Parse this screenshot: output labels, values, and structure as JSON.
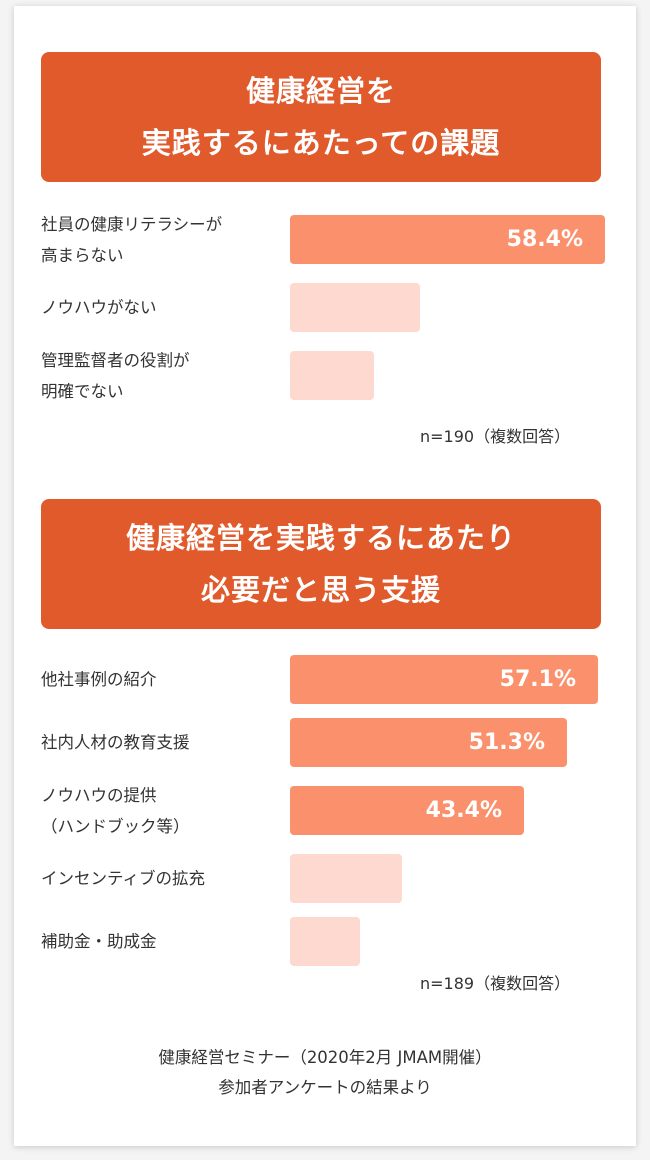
{
  "section1": {
    "title_lines": [
      "健康経営を",
      "実践するにあたっての課題"
    ],
    "note": "n=190（複数回答）"
  },
  "section2": {
    "title_lines": [
      "健康経営を実践するにあたり",
      "必要だと思う支援"
    ],
    "note": "n=189（複数回答）"
  },
  "footer": {
    "lines": [
      "健康経営セミナー（2020年2月 JMAM開催）",
      "参加者アンケートの結果より"
    ]
  },
  "colors": {
    "banner": "#e05a2c",
    "bar_highlight": "#fb916c",
    "bar_light": "#fdd9cf"
  },
  "chart_data": [
    {
      "type": "bar",
      "orientation": "horizontal",
      "categories": [
        [
          "社員の健康リテラシーが",
          "高まらない"
        ],
        [
          "ノウハウがない"
        ],
        [
          "管理監督者の役割が",
          "明確でない"
        ]
      ],
      "values": [
        58.4,
        24.0,
        15.5
      ],
      "value_labels": [
        "58.4%",
        "",
        ""
      ],
      "highlighted": [
        true,
        false,
        false
      ]
    },
    {
      "type": "bar",
      "orientation": "horizontal",
      "categories": [
        [
          "他社事例の紹介"
        ],
        [
          "社内人材の教育支援"
        ],
        [
          "ノウハウの提供",
          "（ハンドブック等）"
        ],
        [
          "インセンティブの拡充"
        ],
        [
          "補助金・助成金"
        ]
      ],
      "values": [
        57.1,
        51.3,
        43.4,
        20.7,
        13.0
      ],
      "value_labels": [
        "57.1%",
        "51.3%",
        "43.4%",
        "",
        ""
      ],
      "highlighted": [
        true,
        true,
        true,
        false,
        false
      ]
    }
  ]
}
